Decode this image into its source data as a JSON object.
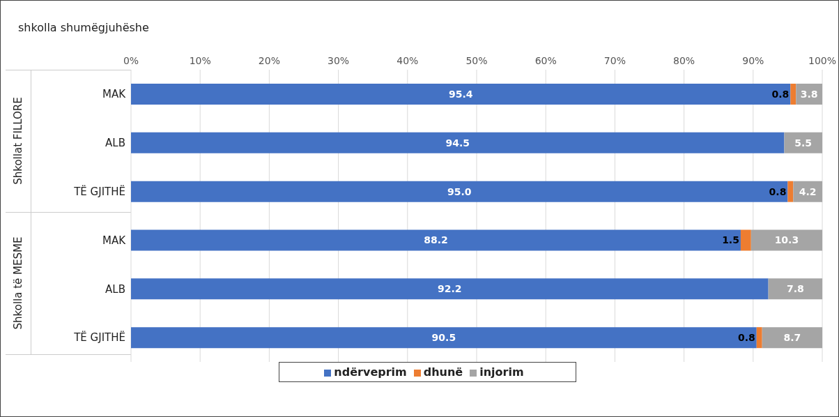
{
  "chart_data": {
    "type": "bar",
    "orientation": "horizontal",
    "stacked": true,
    "title": "shkolla shumëgjuhëshe",
    "categories": [
      "MAK",
      "ALB",
      "TË GJITHË",
      "MAK",
      "ALB",
      "TË GJITHË"
    ],
    "series": [
      {
        "name": "ndërveprim",
        "color": "#4472c4",
        "values": [
          95.4,
          94.5,
          95.0,
          88.2,
          92.2,
          90.5
        ],
        "value_labels": [
          "95.4",
          "94.5",
          "95.0",
          "88.2",
          "92.2",
          "90.5"
        ]
      },
      {
        "name": "dhunë",
        "color": "#ed7d31",
        "values": [
          0.8,
          null,
          0.8,
          1.5,
          null,
          0.8
        ],
        "value_labels": [
          "0.8",
          null,
          "0.8",
          "1.5",
          null,
          "0.8"
        ]
      },
      {
        "name": "injorim",
        "color": "#a5a5a5",
        "values": [
          3.8,
          5.5,
          4.2,
          10.3,
          7.8,
          8.7
        ],
        "value_labels": [
          "3.8",
          "5.5",
          "4.2",
          "10.3",
          "7.8",
          "8.7"
        ]
      }
    ],
    "annotations": [
      "Shkollat FILLORE",
      "Shkolla të MESME"
    ],
    "xlim": [
      0,
      100
    ],
    "xticks": [
      {
        "value": 0,
        "label": "0%"
      },
      {
        "value": 10,
        "label": "10%"
      },
      {
        "value": 20,
        "label": "20%"
      },
      {
        "value": 30,
        "label": "30%"
      },
      {
        "value": 40,
        "label": "40%"
      },
      {
        "value": 50,
        "label": "50%"
      },
      {
        "value": 60,
        "label": "60%"
      },
      {
        "value": 70,
        "label": "70%"
      },
      {
        "value": 80,
        "label": "80%"
      },
      {
        "value": 90,
        "label": "90%"
      },
      {
        "value": 100,
        "label": "100%"
      }
    ],
    "grid": "x",
    "legend": "bottom"
  }
}
